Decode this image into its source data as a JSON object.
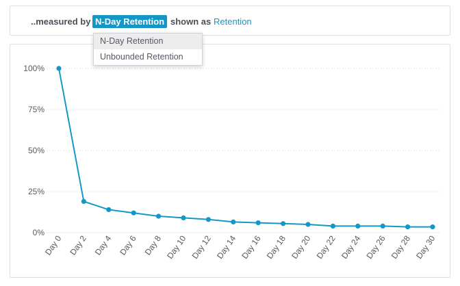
{
  "controls": {
    "measured_label": "..measured by",
    "metric_value": "N-Day Retention",
    "shown_label": "shown as",
    "display_value": "Retention"
  },
  "dropdown": {
    "items": [
      {
        "label": "N-Day Retention",
        "selected": true
      },
      {
        "label": "Unbounded Retention",
        "selected": false
      }
    ]
  },
  "colors": {
    "accent": "#1597c6",
    "line": "#1597c6",
    "grid": "#e6e8eb",
    "axis_text": "#555a63"
  },
  "chart_data": {
    "type": "line",
    "title": "",
    "xlabel": "",
    "ylabel": "",
    "ylim": [
      0,
      100
    ],
    "y_ticks": [
      "0%",
      "25%",
      "50%",
      "75%",
      "100%"
    ],
    "y_tick_values": [
      0,
      25,
      50,
      75,
      100
    ],
    "grid": true,
    "categories": [
      "Day 0",
      "Day 2",
      "Day 4",
      "Day 6",
      "Day 8",
      "Day 10",
      "Day 12",
      "Day 14",
      "Day 16",
      "Day 18",
      "Day 20",
      "Day 22",
      "Day 24",
      "Day 26",
      "Day 28",
      "Day 30"
    ],
    "values": [
      100,
      19,
      14,
      12,
      10,
      9,
      8,
      6.5,
      6,
      5.5,
      5,
      4,
      4,
      4,
      3.5,
      3.5
    ]
  }
}
